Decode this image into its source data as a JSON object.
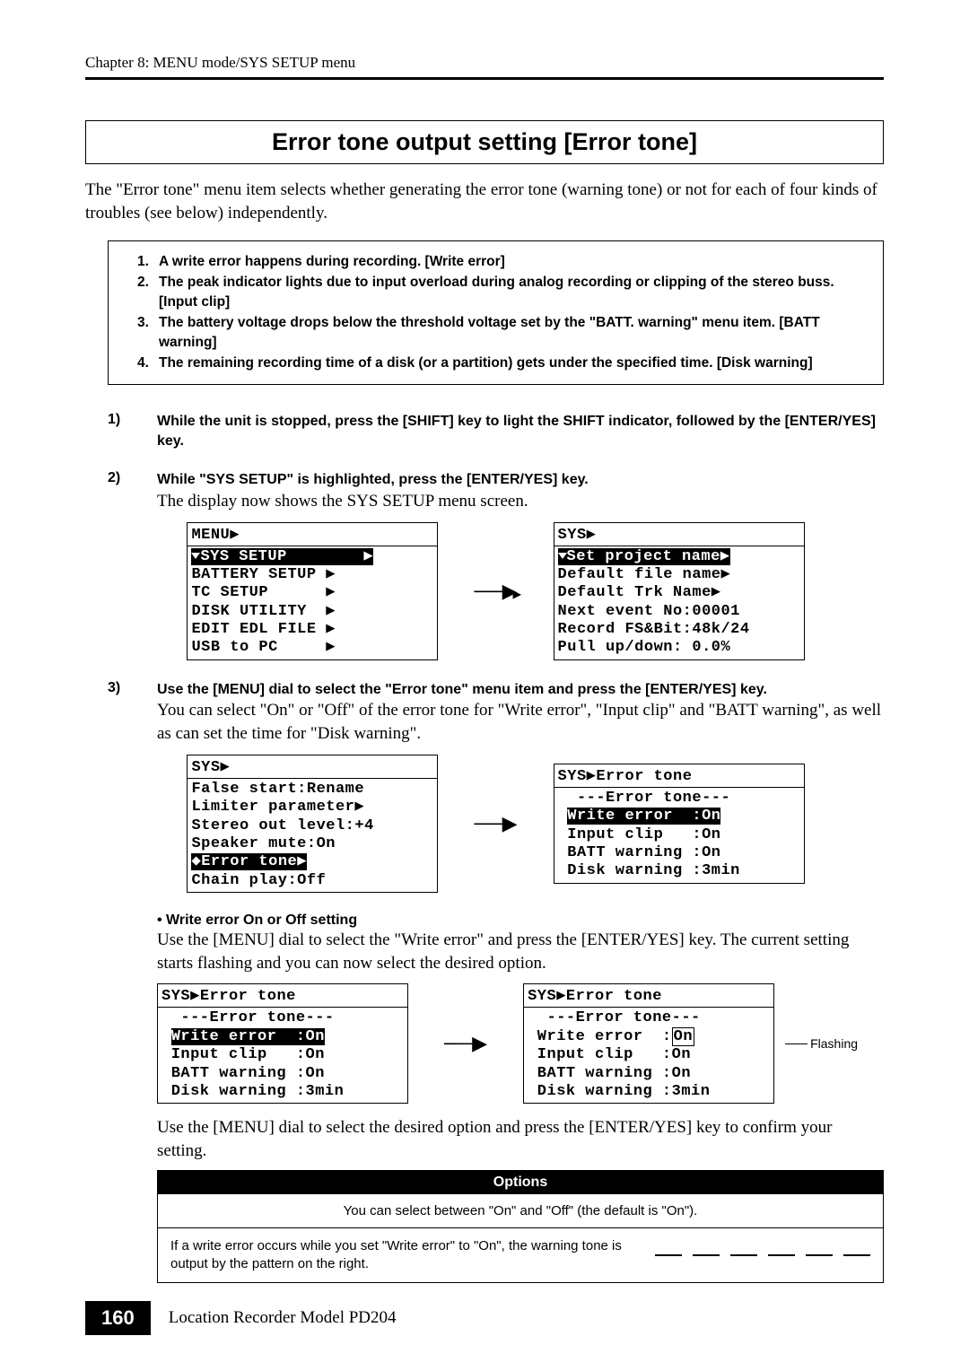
{
  "header": {
    "chapter_line": "Chapter 8: MENU mode/SYS SETUP menu"
  },
  "title": "Error tone output setting [Error tone]",
  "intro": "The \"Error tone\" menu item selects whether generating the error tone (warning tone) or not for each of four kinds of troubles (see below) independently.",
  "trouble_list": [
    "A write error happens during recording. [Write error]",
    "The peak indicator lights due to input overload during analog recording or clipping of the stereo buss. [Input clip]",
    "The battery voltage drops below the threshold voltage set by the \"BATT. warning\" menu item. [BATT warning]",
    "The remaining recording time of a disk (or a partition) gets under the specified time. [Disk warning]"
  ],
  "steps": [
    {
      "num": "1)",
      "heading": "While the unit is stopped, press the [SHIFT] key to light the SHIFT indicator, followed by the [ENTER/YES] key."
    },
    {
      "num": "2)",
      "heading": "While \"SYS SETUP\" is highlighted, press the [ENTER/YES] key.",
      "text": "The display now shows the SYS SETUP menu screen."
    },
    {
      "num": "3)",
      "heading": "Use the [MENU] dial to select the \"Error tone\" menu item and press the [ENTER/YES] key.",
      "text": "You can select \"On\" or \"Off\" of the error tone for \"Write error\", \"Input clip\" and \"BATT warning\", as well as can set the time for \"Disk warning\"."
    }
  ],
  "lcd1": {
    "title": "MENU▶",
    "highlighted": "SYS SETUP        ▶",
    "lines": [
      "BATTERY SETUP ▶",
      "TC SETUP      ▶",
      "DISK UTILITY  ▶",
      "EDIT EDL FILE ▶",
      "USB to PC     ▶"
    ]
  },
  "lcd2": {
    "title": "SYS▶",
    "highlighted": "Set project name▶",
    "lines": [
      "Default file name▶",
      "Default Trk Name▶",
      "Next event No:00001",
      "Record FS&Bit:48k/24",
      "Pull up/down: 0.0%"
    ]
  },
  "lcd3": {
    "title": "SYS▶",
    "lines": [
      "False start:Rename",
      "Limiter parameter▶",
      "Stereo out level:+4",
      "Speaker mute:On"
    ],
    "highlighted": "Error tone▶",
    "after": [
      "Chain play:Off"
    ]
  },
  "lcd4": {
    "title": "SYS▶Error tone",
    "subtitle": "---Error tone---",
    "highlighted": "Write error  :On",
    "lines": [
      "Input clip   :On",
      "BATT warning :On",
      "Disk warning :3min"
    ]
  },
  "sub": {
    "bullet": "• Write error On or Off setting",
    "text1": "Use the [MENU] dial to select the \"Write error\" and press the [ENTER/YES] key. The current setting starts flashing and you can now select the desired option.",
    "text2": "Use the [MENU] dial to select the desired option and press the [ENTER/YES] key to confirm your setting."
  },
  "lcd5": {
    "title": "SYS▶Error tone",
    "subtitle": "---Error tone---",
    "highlighted": "Write error  :On",
    "lines": [
      "Input clip   :On",
      "BATT warning :On",
      "Disk warning :3min"
    ]
  },
  "lcd6": {
    "title": "SYS▶Error tone",
    "subtitle": "---Error tone---",
    "line_pre": "Write error  :",
    "flashing_val": "On",
    "lines": [
      "Input clip   :On",
      "BATT warning :On",
      "Disk warning :3min"
    ]
  },
  "flashing_label": "Flashing",
  "options": {
    "header": "Options",
    "row1": "You can select between \"On\" and \"Off\" (the default is \"On\").",
    "row2": "If a write error occurs while you set \"Write error\" to \"On\", the warning tone is output by the pattern on the right."
  },
  "footer": {
    "page": "160",
    "text": "Location Recorder Model PD204"
  },
  "colors": {
    "text": "#000000",
    "bg": "#ffffff",
    "inverse_bg": "#000000",
    "inverse_text": "#ffffff"
  }
}
